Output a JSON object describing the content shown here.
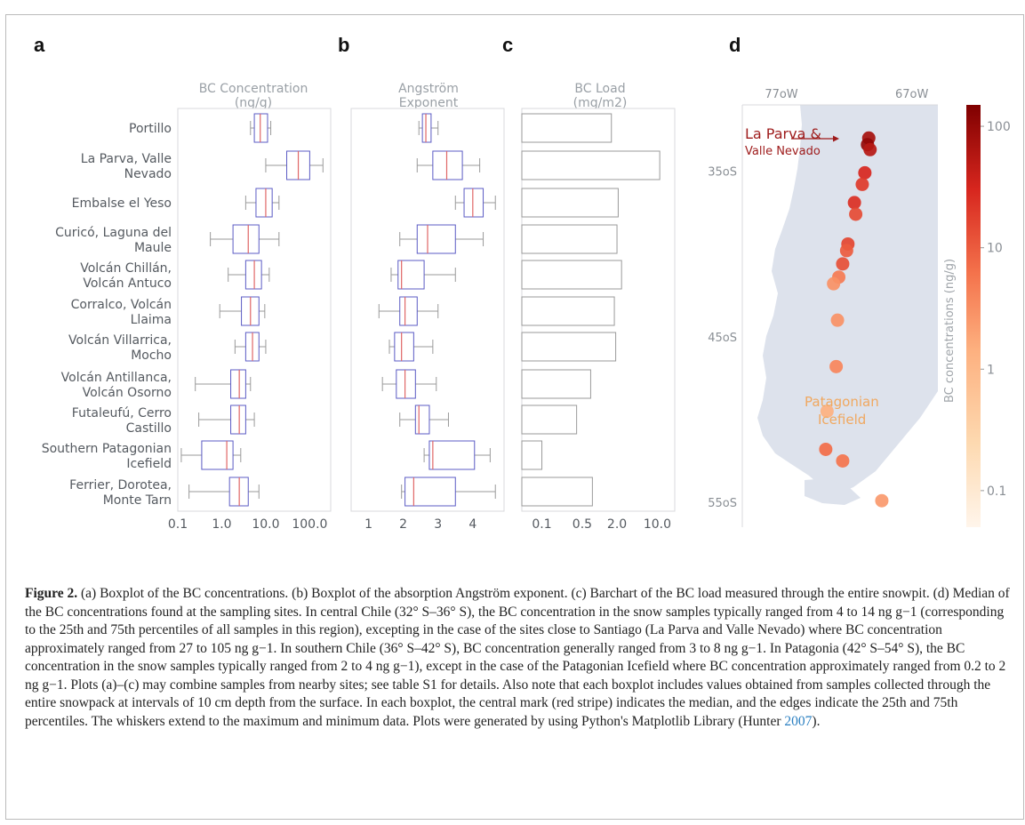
{
  "panels": {
    "a": "a",
    "b": "b",
    "c": "c",
    "d": "d"
  },
  "axis_titles": {
    "a": [
      "BC Concentration",
      "(ng/g)"
    ],
    "b": [
      "Angström",
      "Exponent"
    ],
    "c": [
      "BC Load",
      "(mg/m2)"
    ]
  },
  "sites": [
    [
      "Portillo"
    ],
    [
      "La Parva, Valle",
      "Nevado"
    ],
    [
      "Embalse el Yeso"
    ],
    [
      "Curicó, Laguna del",
      "Maule"
    ],
    [
      "Volcán Chillán,",
      "Volcán Antuco"
    ],
    [
      "Corralco, Volcán",
      "Llaima"
    ],
    [
      "Volcán Villarrica,",
      "Mocho"
    ],
    [
      "Volcán Antillanca,",
      "Volcán Osorno"
    ],
    [
      "Futaleufú, Cerro",
      "Castillo"
    ],
    [
      "Southern Patagonian",
      "Icefield"
    ],
    [
      "Ferrier, Dorotea,",
      "Monte Tarn"
    ]
  ],
  "chart_data": [
    {
      "type": "boxplot",
      "panel": "a",
      "xlabel": "BC Concentration (ng/g)",
      "xscale": "log",
      "xlim": [
        0.1,
        300
      ],
      "xticks": [
        "0.1",
        "1.0",
        "10.0",
        "100.0"
      ],
      "xtick_values": [
        0.1,
        1,
        10,
        100
      ],
      "boxes": [
        {
          "min": 4.5,
          "q1": 5.5,
          "median": 7.5,
          "q3": 11,
          "max": 13
        },
        {
          "min": 10,
          "q1": 30,
          "median": 55,
          "q3": 100,
          "max": 200
        },
        {
          "min": 3.5,
          "q1": 6,
          "median": 10,
          "q3": 14,
          "max": 20
        },
        {
          "min": 0.55,
          "q1": 1.8,
          "median": 4,
          "q3": 7,
          "max": 20
        },
        {
          "min": 1.4,
          "q1": 3.5,
          "median": 5.5,
          "q3": 8,
          "max": 12
        },
        {
          "min": 0.9,
          "q1": 2.8,
          "median": 4.5,
          "q3": 7,
          "max": 9.5
        },
        {
          "min": 2,
          "q1": 3.5,
          "median": 5,
          "q3": 7,
          "max": 10
        },
        {
          "min": 0.25,
          "q1": 1.6,
          "median": 2.5,
          "q3": 3.5,
          "max": 4.5
        },
        {
          "min": 0.3,
          "q1": 1.6,
          "median": 2.5,
          "q3": 3.5,
          "max": 5.5
        },
        {
          "min": 0.12,
          "q1": 0.35,
          "median": 1.3,
          "q3": 1.8,
          "max": 2.7
        },
        {
          "min": 0.18,
          "q1": 1.5,
          "median": 2.5,
          "q3": 4,
          "max": 7
        }
      ]
    },
    {
      "type": "boxplot",
      "panel": "b",
      "xlabel": "Angström Exponent",
      "xlim": [
        0.5,
        4.9
      ],
      "xticks": [
        "1",
        "2",
        "3",
        "4"
      ],
      "xtick_values": [
        1,
        2,
        3,
        4
      ],
      "boxes": [
        {
          "min": 2.45,
          "q1": 2.55,
          "median": 2.65,
          "q3": 2.8,
          "max": 3.0
        },
        {
          "min": 2.4,
          "q1": 2.85,
          "median": 3.25,
          "q3": 3.7,
          "max": 4.2
        },
        {
          "min": 3.5,
          "q1": 3.75,
          "median": 4.0,
          "q3": 4.3,
          "max": 4.65
        },
        {
          "min": 1.9,
          "q1": 2.4,
          "median": 2.7,
          "q3": 3.5,
          "max": 4.3
        },
        {
          "min": 1.65,
          "q1": 1.85,
          "median": 1.95,
          "q3": 2.6,
          "max": 3.5
        },
        {
          "min": 1.3,
          "q1": 1.9,
          "median": 2.05,
          "q3": 2.4,
          "max": 3.0
        },
        {
          "min": 1.6,
          "q1": 1.75,
          "median": 1.95,
          "q3": 2.3,
          "max": 2.85
        },
        {
          "min": 1.4,
          "q1": 1.8,
          "median": 2.05,
          "q3": 2.35,
          "max": 2.95
        },
        {
          "min": 1.9,
          "q1": 2.35,
          "median": 2.45,
          "q3": 2.75,
          "max": 3.3
        },
        {
          "min": 2.6,
          "q1": 2.75,
          "median": 2.85,
          "q3": 4.05,
          "max": 4.5
        },
        {
          "min": 1.95,
          "q1": 2.05,
          "median": 2.3,
          "q3": 3.5,
          "max": 4.65
        }
      ]
    },
    {
      "type": "bar",
      "panel": "c",
      "orientation": "horizontal",
      "xlabel": "BC Load (mg/m2)",
      "xscale": "log",
      "xlim": [
        0.045,
        20
      ],
      "xticks": [
        "0.1",
        "0.5",
        "2.0",
        "10.0"
      ],
      "xtick_values": [
        0.1,
        0.5,
        2,
        10
      ],
      "values": [
        1.6,
        11,
        2.1,
        2.0,
        2.4,
        1.8,
        1.9,
        0.7,
        0.4,
        0.1,
        0.75
      ]
    },
    {
      "type": "scatter",
      "panel": "d",
      "description_title": "map",
      "x_ticks": [
        "77oW",
        "67oW"
      ],
      "y_ticks": [
        "35oS",
        "45oS",
        "55oS"
      ],
      "colorbar_label": "BC concentrations (ng/g)",
      "colorbar_scale": "log",
      "colorbar_ticks": [
        "100",
        "10",
        "1",
        "0.1"
      ],
      "colorbar_tick_values": [
        100,
        10,
        1,
        0.1
      ],
      "colorbar_range": [
        0.05,
        150
      ],
      "annotations": [
        {
          "text": "La Parva &",
          "color": "#9e1b1b"
        },
        {
          "text": "Valle Nevado",
          "color": "#9e1b1b"
        },
        {
          "text": "Patagonian",
          "color": "#f0a860"
        },
        {
          "text": "Icefield",
          "color": "#f0a860"
        }
      ],
      "points": [
        {
          "lon": -70.3,
          "lat": -33.0,
          "value": 75
        },
        {
          "lon": -70.4,
          "lat": -33.4,
          "value": 105
        },
        {
          "lon": -70.2,
          "lat": -33.7,
          "value": 55
        },
        {
          "lon": -70.6,
          "lat": -35.1,
          "value": 30
        },
        {
          "lon": -70.8,
          "lat": -35.8,
          "value": 20
        },
        {
          "lon": -71.4,
          "lat": -36.9,
          "value": 25
        },
        {
          "lon": -71.3,
          "lat": -37.6,
          "value": 14
        },
        {
          "lon": -71.9,
          "lat": -39.4,
          "value": 16
        },
        {
          "lon": -72.0,
          "lat": -39.8,
          "value": 10
        },
        {
          "lon": -72.3,
          "lat": -40.6,
          "value": 13
        },
        {
          "lon": -72.6,
          "lat": -41.4,
          "value": 5
        },
        {
          "lon": -73.0,
          "lat": -41.8,
          "value": 3
        },
        {
          "lon": -72.7,
          "lat": -44.0,
          "value": 3
        },
        {
          "lon": -72.8,
          "lat": -46.8,
          "value": 4
        },
        {
          "lon": -73.5,
          "lat": -49.5,
          "value": 1.4
        },
        {
          "lon": -73.6,
          "lat": -51.8,
          "value": 7
        },
        {
          "lon": -72.3,
          "lat": -52.5,
          "value": 6
        },
        {
          "lon": -69.3,
          "lat": -54.9,
          "value": 2.5
        }
      ]
    }
  ],
  "caption": {
    "label": "Figure 2.",
    "text_before_link": " (a) Boxplot of the BC concentrations. (b) Boxplot of the absorption Angström exponent. (c) Barchart of the BC load measured through the entire snowpit. (d) Median of the BC concentrations found at the sampling sites. In central Chile (32° S–36° S), the BC concentration in the snow samples typically ranged from 4 to 14 ng g−1 (corresponding to the 25th and 75th percentiles of all samples in this region), excepting in the case of the sites close to Santiago (La Parva and Valle Nevado) where BC concentration approximately ranged from 27 to 105 ng g−1. In southern Chile (36° S–42° S), BC concentration generally ranged from 3 to 8 ng g−1. In Patagonia (42° S–54° S), the BC concentration in the snow samples typically ranged from 2 to 4 ng g−1), except in the case of the Patagonian Icefield where BC concentration approximately ranged from 0.2 to 2 ng g−1. Plots (a)–(c) may combine samples from nearby sites; see table S1 for details. Also note that each boxplot includes values obtained from samples collected through the entire snowpack at intervals of 10 cm depth from the surface. In each boxplot, the central mark (red stripe) indicates the median, and the edges indicate the 25th and 75th percentiles. The whiskers extend to the maximum and minimum data. Plots were generated by using Python's Matplotlib Library (Hunter ",
    "link": "2007",
    "text_after_link": ")."
  }
}
